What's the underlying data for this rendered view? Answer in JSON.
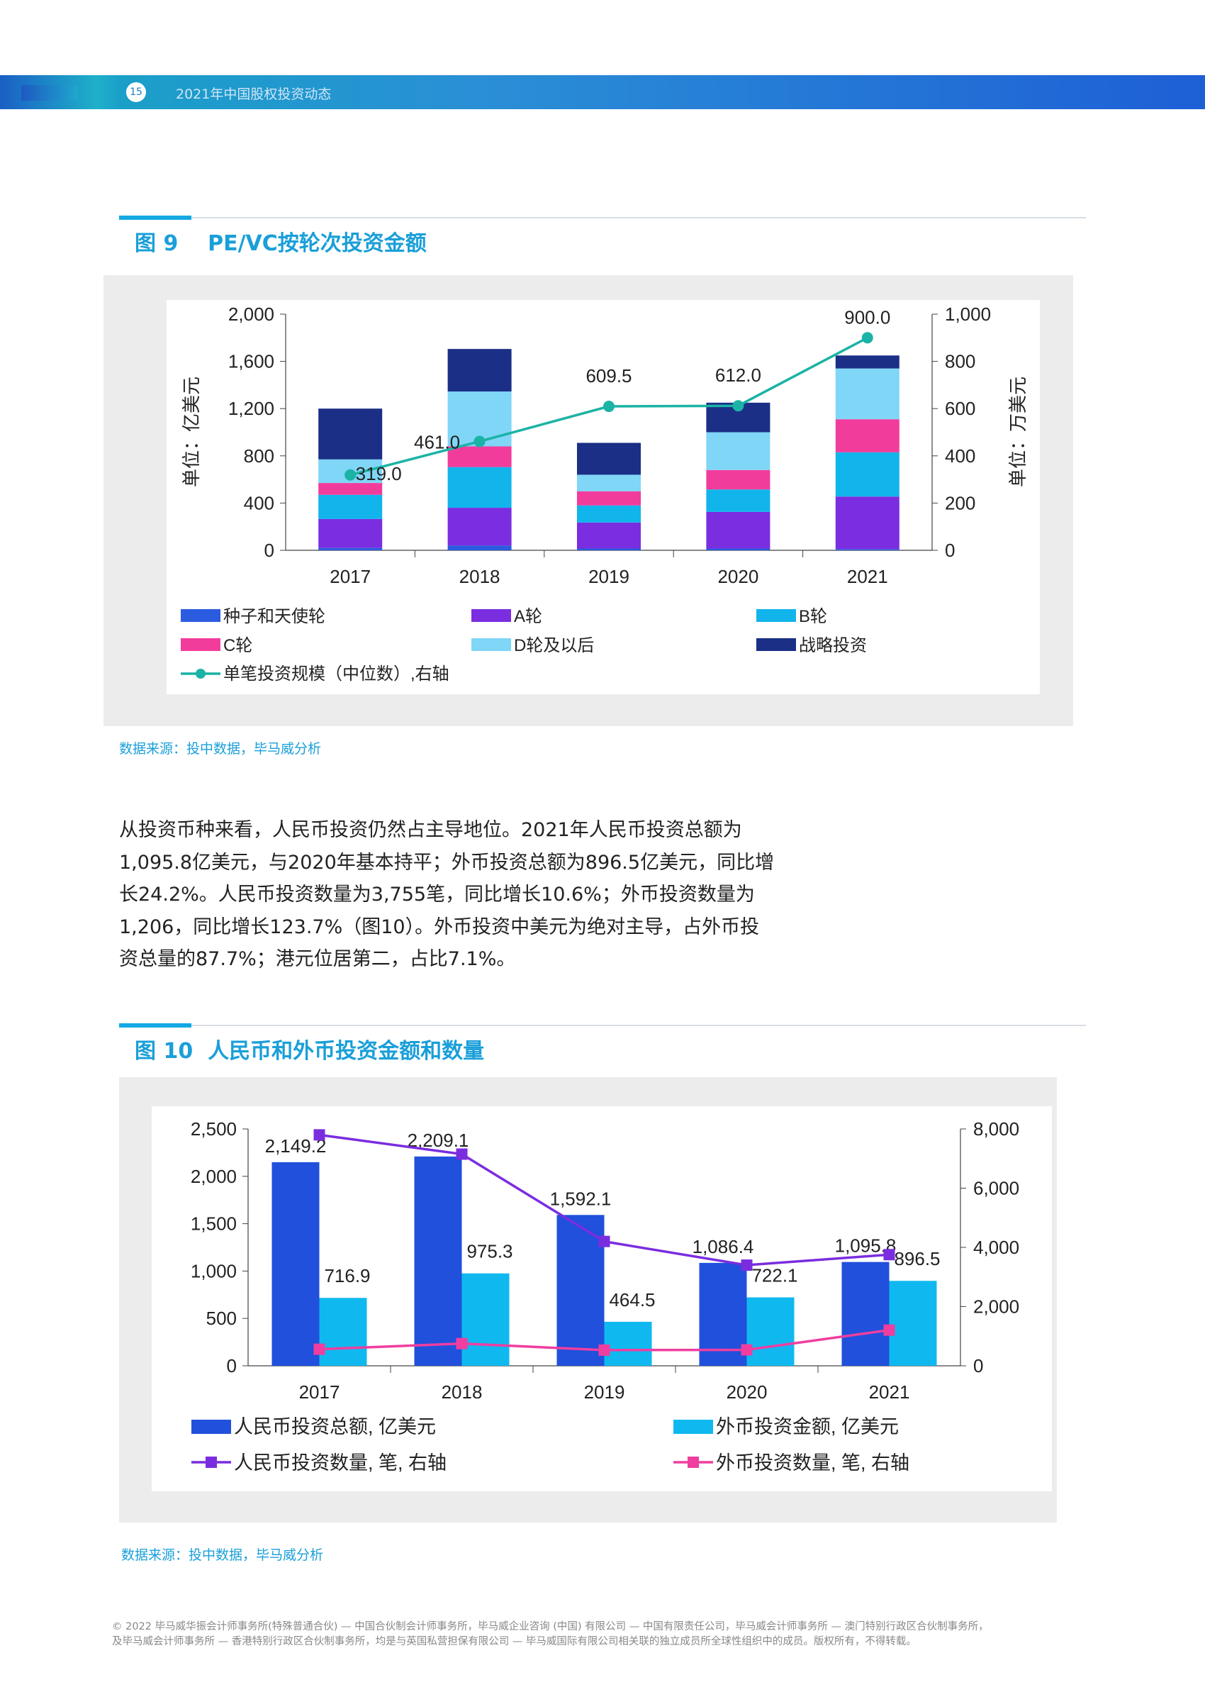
{
  "header": {
    "page_number": "15",
    "title": "2021年中国股权投资动态"
  },
  "figure9": {
    "label": "图 9",
    "title": "PE/VC按轮次投资金额",
    "source": "数据来源：投中数据，毕马威分析"
  },
  "figure10": {
    "label": "图 10",
    "title": "人民币和外币投资金额和数量",
    "source": "数据来源：投中数据，毕马威分析"
  },
  "paragraph": "从投资币种来看，人民币投资仍然占主导地位。2021年人民币投资总额为1,095.8亿美元，与2020年基本持平；外币投资总额为896.5亿美元，同比增长24.2%。人民币投资数量为3,755笔，同比增长10.6%；外币投资数量为1,206，同比增长123.7%（图10）。外币投资中美元为绝对主导，占外币投资总量的87.7%；港元位居第二，占比7.1%。",
  "paragraph_lines": [
    "从投资币种来看，人民币投资仍然占主导地位。2021年人民币投资总额为",
    "1,095.8亿美元，与2020年基本持平；外币投资总额为896.5亿美元，同比增",
    "长24.2%。人民币投资数量为3,755笔，同比增长10.6%；外币投资数量为",
    "1,206，同比增长123.7%（图10）。外币投资中美元为绝对主导，占外币投",
    "资总量的87.7%；港元位居第二，占比7.1%。"
  ],
  "footer_lines": [
    "© 2022 毕马威华振会计师事务所(特殊普通合伙) — 中国合伙制会计师事务所，毕马威企业咨询 (中国) 有限公司 — 中国有限责任公司，毕马威会计师事务所 — 澳门特别行政区合伙制事务所，",
    "及毕马威会计师事务所 — 香港特别行政区合伙制事务所，均是与英国私营担保有限公司 — 毕马威国际有限公司相关联的独立成员所全球性组织中的成员。版权所有，不得转载。"
  ],
  "chart_data": [
    {
      "type": "bar",
      "stacked": true,
      "categories": [
        "2017",
        "2018",
        "2019",
        "2020",
        "2021"
      ],
      "ylabel": "单位：亿美元",
      "ylim": [
        0,
        2000
      ],
      "yticks": [
        "0",
        "400",
        "800",
        "1,200",
        "1,600",
        "2,000"
      ],
      "y2label": "单位：万美元",
      "y2lim": [
        0,
        1000
      ],
      "y2ticks": [
        "0",
        "200",
        "400",
        "600",
        "800",
        "1,000"
      ],
      "series": [
        {
          "name": "种子和天使轮",
          "color": "#2b5ce0",
          "values": [
            20,
            40,
            15,
            15,
            10
          ]
        },
        {
          "name": "A轮",
          "color": "#7b2de0",
          "values": [
            245,
            320,
            220,
            310,
            445
          ]
        },
        {
          "name": "B轮",
          "color": "#12b4ec",
          "values": [
            205,
            345,
            145,
            190,
            375
          ]
        },
        {
          "name": "C轮",
          "color": "#f23c9c",
          "values": [
            100,
            175,
            120,
            165,
            280
          ]
        },
        {
          "name": "D轮及以后",
          "color": "#7fd6f7",
          "values": [
            200,
            465,
            140,
            320,
            430
          ]
        },
        {
          "name": "战略投资",
          "color": "#1b2f86",
          "values": [
            430,
            360,
            270,
            250,
            110
          ]
        }
      ],
      "line": {
        "name": "单笔投资规模（中位数）,右轴",
        "color": "#1bb3a5",
        "axis": "right",
        "values": [
          319.0,
          461.0,
          609.5,
          612.0,
          900.0
        ],
        "labels": [
          "319.0",
          "461.0",
          "609.5",
          "612.0",
          "900.0"
        ]
      },
      "legend_placement": "bottom"
    },
    {
      "type": "bar",
      "categories": [
        "2017",
        "2018",
        "2019",
        "2020",
        "2021"
      ],
      "ylim": [
        0,
        2500
      ],
      "yticks": [
        "0",
        "500",
        "1,000",
        "1,500",
        "2,000",
        "2,500"
      ],
      "y2lim": [
        0,
        8000
      ],
      "y2ticks": [
        "0",
        "2,000",
        "4,000",
        "6,000",
        "8,000"
      ],
      "series": [
        {
          "name": "人民币投资总额, 亿美元",
          "color": "#2050dc",
          "values": [
            2149.2,
            2209.1,
            1592.1,
            1086.4,
            1095.8
          ],
          "labels": [
            "2,149.2",
            "2,209.1",
            "1,592.1",
            "1,086.4",
            "1,095.8"
          ]
        },
        {
          "name": "外币投资金额, 亿美元",
          "color": "#0fb9ef",
          "values": [
            716.9,
            975.3,
            464.5,
            722.1,
            896.5
          ],
          "labels": [
            "716.9",
            "975.3",
            "464.5",
            "722.1",
            "896.5"
          ]
        }
      ],
      "lines": [
        {
          "name": "人民币投资数量, 笔, 右轴",
          "color": "#7a2ddf",
          "marker": "square",
          "axis": "right",
          "values": [
            7800,
            7150,
            4200,
            3400,
            3755
          ]
        },
        {
          "name": "外币投资数量, 笔, 右轴",
          "color": "#ef3ea0",
          "marker": "square",
          "axis": "right",
          "values": [
            560,
            750,
            530,
            539,
            1206
          ]
        }
      ],
      "legend_placement": "bottom"
    }
  ]
}
